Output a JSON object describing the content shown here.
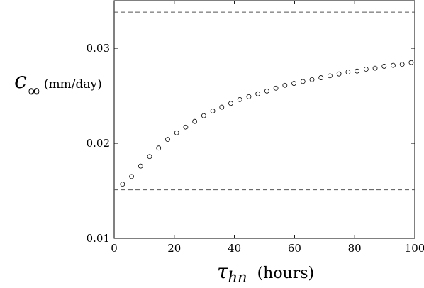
{
  "chart_data": {
    "type": "scatter",
    "title": "",
    "xlabel_symbol": "τ",
    "xlabel_subscript": "hn",
    "xlabel_unit": "(hours)",
    "ylabel_symbol": "c",
    "ylabel_subscript": "∞",
    "ylabel_unit": "(mm/day)",
    "xlim": [
      0,
      100
    ],
    "ylim": [
      0.01,
      0.035
    ],
    "xticks": [
      0,
      20,
      40,
      60,
      80,
      100
    ],
    "xtick_labels": [
      "0",
      "20",
      "40",
      "60",
      "80",
      "100"
    ],
    "yticks": [
      0.01,
      0.02,
      0.03
    ],
    "ytick_labels": [
      "0.01",
      "0.02",
      "0.03"
    ],
    "grid": false,
    "reference_lines": [
      {
        "y": 0.0338,
        "style": "dashed"
      },
      {
        "y": 0.0151,
        "style": "dashed"
      }
    ],
    "series": [
      {
        "marker": "open-circle",
        "x": [
          2.8,
          5.8,
          8.8,
          11.8,
          14.8,
          17.8,
          20.8,
          23.8,
          26.8,
          29.8,
          32.8,
          35.8,
          38.8,
          41.8,
          44.8,
          47.8,
          50.8,
          53.8,
          56.8,
          59.8,
          62.8,
          65.8,
          68.8,
          71.8,
          74.8,
          77.8,
          80.8,
          83.8,
          86.8,
          89.8,
          92.8,
          95.8,
          98.8
        ],
        "y": [
          0.0157,
          0.0165,
          0.0176,
          0.0186,
          0.0195,
          0.0204,
          0.0211,
          0.0217,
          0.0223,
          0.0229,
          0.0234,
          0.0238,
          0.0242,
          0.0246,
          0.0249,
          0.0252,
          0.0255,
          0.0258,
          0.0261,
          0.0263,
          0.0265,
          0.0267,
          0.0269,
          0.0271,
          0.0273,
          0.0275,
          0.0276,
          0.0278,
          0.0279,
          0.0281,
          0.0282,
          0.0283,
          0.0285
        ]
      }
    ]
  }
}
